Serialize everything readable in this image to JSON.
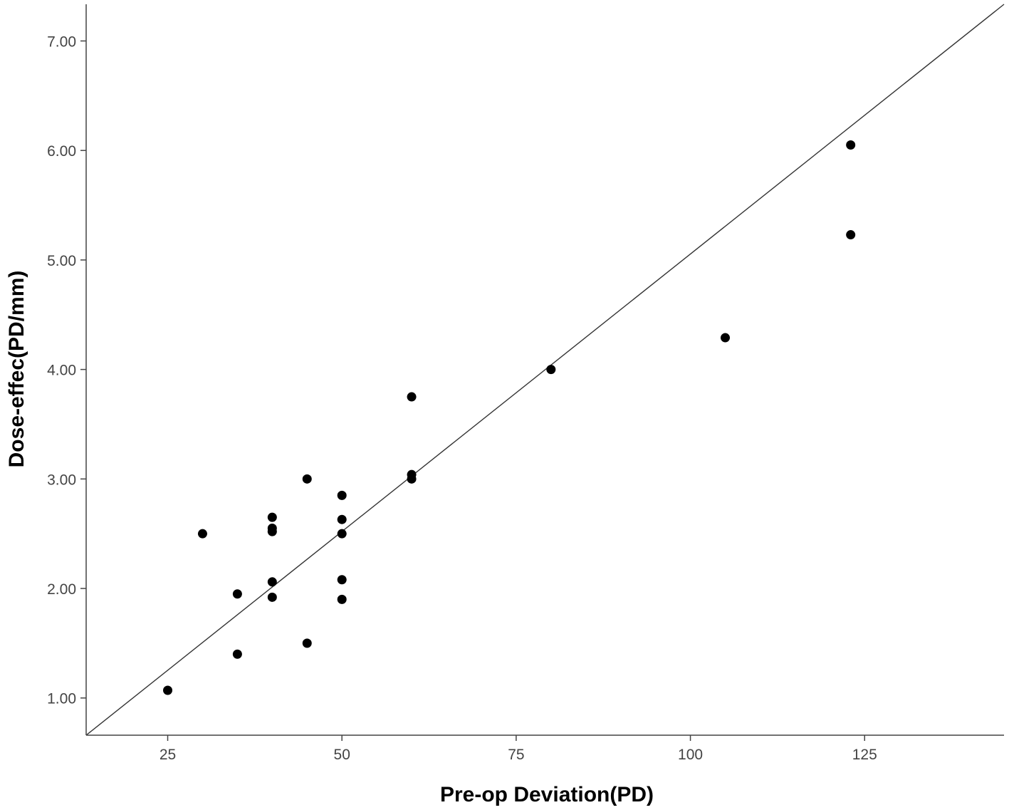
{
  "chart_data": {
    "type": "scatter",
    "title": "",
    "xlabel": "Pre-op Deviation(PD)",
    "ylabel": "Dose-effec(PD/mm)",
    "xlim": [
      13.3,
      145
    ],
    "ylim": [
      0.66,
      7.335
    ],
    "x_ticks": [
      25,
      50,
      75,
      100,
      125
    ],
    "x_tick_labels": [
      "25",
      "50",
      "75",
      "100",
      "125"
    ],
    "y_ticks": [
      1,
      2,
      3,
      4,
      5,
      6,
      7
    ],
    "y_tick_labels": [
      "1.00",
      "2.00",
      "3.00",
      "4.00",
      "5.00",
      "6.00",
      "7.00"
    ],
    "grid": false,
    "reference_line": {
      "from": [
        13.3,
        0.66
      ],
      "to": [
        145,
        7.335
      ]
    },
    "points": [
      {
        "x": 25,
        "y": 1.07
      },
      {
        "x": 30,
        "y": 2.5
      },
      {
        "x": 35,
        "y": 1.95
      },
      {
        "x": 35,
        "y": 1.4
      },
      {
        "x": 40,
        "y": 2.65
      },
      {
        "x": 40,
        "y": 2.55
      },
      {
        "x": 40,
        "y": 2.52
      },
      {
        "x": 40,
        "y": 2.06
      },
      {
        "x": 40,
        "y": 1.92
      },
      {
        "x": 45,
        "y": 3.0
      },
      {
        "x": 45,
        "y": 1.5
      },
      {
        "x": 50,
        "y": 2.85
      },
      {
        "x": 50,
        "y": 2.63
      },
      {
        "x": 50,
        "y": 2.5
      },
      {
        "x": 50,
        "y": 2.08
      },
      {
        "x": 50,
        "y": 1.9
      },
      {
        "x": 60,
        "y": 3.75
      },
      {
        "x": 60,
        "y": 3.04
      },
      {
        "x": 60,
        "y": 3.0
      },
      {
        "x": 80,
        "y": 4.0
      },
      {
        "x": 105,
        "y": 4.29
      },
      {
        "x": 123,
        "y": 6.05
      },
      {
        "x": 123,
        "y": 5.23
      }
    ],
    "colors": {
      "points": "#000000",
      "line": "#333333",
      "axis": "#444444"
    }
  }
}
